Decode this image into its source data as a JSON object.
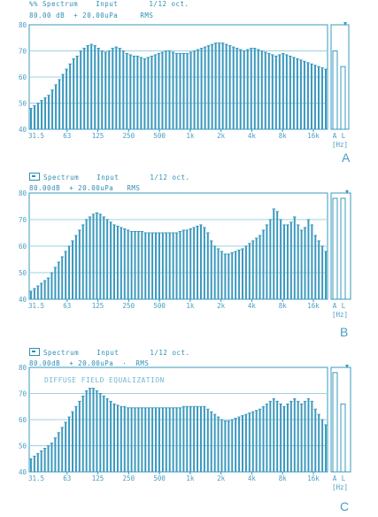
{
  "chart_data": [
    {
      "type": "bar",
      "panel_label": "A",
      "header_line1": "%% Spectrum    Input       1/12 oct.",
      "header_line2": "80.00 dB  + 20.00uPa     RMS",
      "annotation": "",
      "yticks": [
        "80",
        "70",
        "60",
        "50",
        "40"
      ],
      "ylim": [
        40,
        80
      ],
      "xticks": [
        "31.5",
        "63",
        "125",
        "250",
        "500",
        "1k",
        "2k",
        "4k",
        "8k",
        "16k",
        "A",
        "L"
      ],
      "xunit": "[Hz]",
      "grid": true,
      "values": [
        48,
        49,
        50,
        51,
        52,
        53,
        55,
        57,
        59,
        61,
        63,
        65,
        67,
        68,
        70,
        71,
        72,
        72.5,
        72,
        71,
        70,
        69.5,
        70,
        71,
        71.5,
        71,
        70,
        69,
        68.5,
        68,
        68,
        67.5,
        67,
        67.5,
        68,
        68.5,
        69,
        69.5,
        70,
        70,
        69.5,
        69,
        69,
        69,
        69,
        69.5,
        70,
        70.5,
        71,
        71.5,
        72,
        72.5,
        73,
        73,
        73,
        72.5,
        72,
        71.5,
        71,
        70.5,
        70,
        70.5,
        71,
        71,
        70.5,
        70,
        69.5,
        69,
        68.5,
        68,
        68.5,
        69,
        68.5,
        68,
        67.5,
        67,
        66.5,
        66,
        65.5,
        65,
        64.5,
        64,
        63.5,
        63
      ],
      "extra_bars": [
        70,
        64
      ]
    },
    {
      "type": "bar",
      "panel_label": "B",
      "header_line1": "Spectrum    Input       1/12 oct.",
      "header_line2": "80.00dB  + 20.00uPa   RMS",
      "annotation": "",
      "yticks": [
        "80",
        "70",
        "60",
        "50",
        "40"
      ],
      "ylim": [
        40,
        80
      ],
      "xticks": [
        "31.5",
        "63",
        "125",
        "250",
        "500",
        "1k",
        "2k",
        "4k",
        "8k",
        "16k",
        "A",
        "L"
      ],
      "xunit": "[Hz]",
      "grid": true,
      "values": [
        43,
        44,
        45,
        46,
        47,
        48,
        50,
        52,
        54,
        56,
        58,
        60,
        62,
        64,
        66,
        68,
        70,
        71,
        72,
        72.5,
        72,
        71,
        70,
        69,
        68,
        67.5,
        67,
        66.5,
        66,
        65.5,
        65.5,
        65.5,
        65.5,
        65,
        65,
        65,
        65,
        65,
        65,
        65,
        65,
        65,
        65,
        65.5,
        66,
        66,
        66.5,
        67,
        67.5,
        68,
        67,
        65,
        62,
        60,
        59,
        58,
        57,
        57,
        57.5,
        58,
        58.5,
        59,
        60,
        61,
        62,
        63,
        64,
        66,
        68,
        70,
        74,
        73,
        70,
        68,
        68,
        69,
        71,
        68,
        66,
        67,
        70,
        68,
        64,
        62,
        60,
        58
      ],
      "extra_bars": [
        78,
        78
      ]
    },
    {
      "type": "bar",
      "panel_label": "C",
      "header_line1": "Spectrum    Input       1/12 oct.",
      "header_line2": "80.00dB  + 20.00uPa  ·  RMS",
      "annotation": "DIFFUSE FIELD EQUALIZATION",
      "yticks": [
        "80",
        "70",
        "60",
        "50",
        "40"
      ],
      "ylim": [
        40,
        80
      ],
      "xticks": [
        "31.5",
        "63",
        "125",
        "250",
        "500",
        "1k",
        "2k",
        "4k",
        "8k",
        "16k",
        "A",
        "L"
      ],
      "xunit": "[Hz]",
      "grid": true,
      "values": [
        45,
        46,
        47,
        48,
        49,
        50,
        51,
        53,
        55,
        57,
        59,
        61,
        63,
        65,
        67,
        69,
        71,
        72,
        72,
        71,
        70,
        69,
        68,
        67,
        66,
        65.5,
        65,
        65,
        64.5,
        64.5,
        64.5,
        64.5,
        64.5,
        64.5,
        64.5,
        64.5,
        64.5,
        64.5,
        64.5,
        64.5,
        64.5,
        64.5,
        64.5,
        64.5,
        65,
        65,
        65,
        65,
        65,
        65,
        65,
        64,
        63,
        62,
        61,
        60,
        59.5,
        59.5,
        60,
        60.5,
        61,
        61.5,
        62,
        62.5,
        63,
        63.5,
        64,
        65,
        66,
        67,
        68,
        67,
        66,
        65,
        66,
        67,
        68,
        67,
        66,
        67,
        68,
        67,
        64,
        62,
        60,
        58
      ],
      "extra_bars": [
        78,
        66
      ]
    }
  ]
}
